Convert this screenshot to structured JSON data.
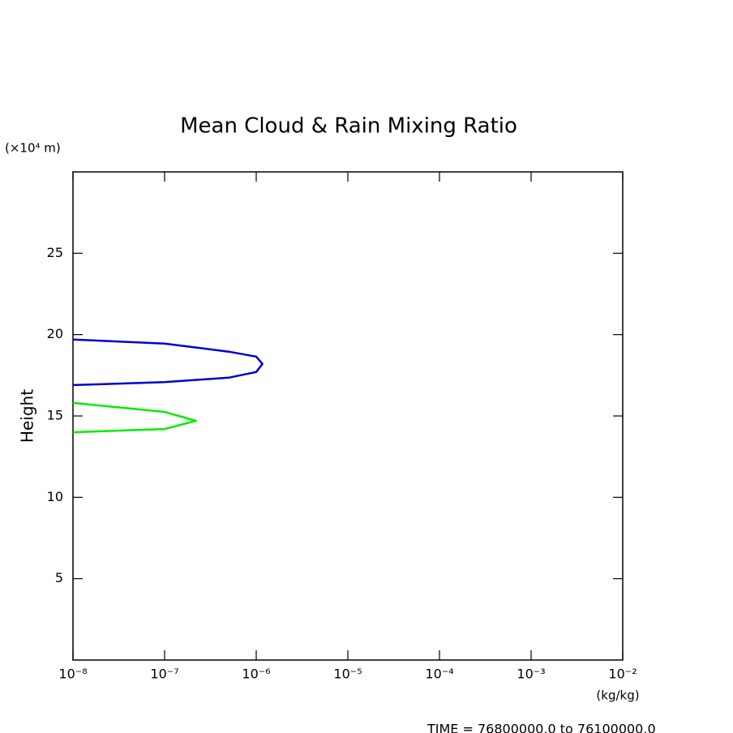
{
  "chart_data": {
    "type": "line",
    "title": "Mean Cloud & Rain Mixing Ratio",
    "y_unit": "(×10⁴ m)",
    "ylabel": "Height",
    "x_unit": "(kg/kg)",
    "footer": "TIME = 76800000.0 to 76100000.0",
    "xscale": "log",
    "xlim": [
      1e-08,
      0.01
    ],
    "xticks": [
      {
        "value": 1e-08,
        "label": "10⁻⁸"
      },
      {
        "value": 1e-07,
        "label": "10⁻⁷"
      },
      {
        "value": 1e-06,
        "label": "10⁻⁶"
      },
      {
        "value": 1e-05,
        "label": "10⁻⁵"
      },
      {
        "value": 0.0001,
        "label": "10⁻⁴"
      },
      {
        "value": 0.001,
        "label": "10⁻³"
      },
      {
        "value": 0.01,
        "label": "10⁻²"
      }
    ],
    "ylim": [
      0,
      30
    ],
    "yticks": [
      5,
      10,
      15,
      20,
      25
    ],
    "series": [
      {
        "color": "#0000cc",
        "x": [
          1e-08,
          1e-07,
          5e-07,
          1e-06,
          1.17e-06,
          1e-06,
          5e-07,
          1e-07,
          1e-08
        ],
        "y": [
          16.9,
          17.08,
          17.35,
          17.7,
          18.2,
          18.65,
          18.95,
          19.45,
          19.7
        ]
      },
      {
        "color": "#00ee00",
        "x": [
          1e-08,
          1e-07,
          2.2e-07,
          1e-07,
          1e-08
        ],
        "y": [
          14.0,
          14.2,
          14.7,
          15.25,
          15.8
        ]
      }
    ]
  }
}
